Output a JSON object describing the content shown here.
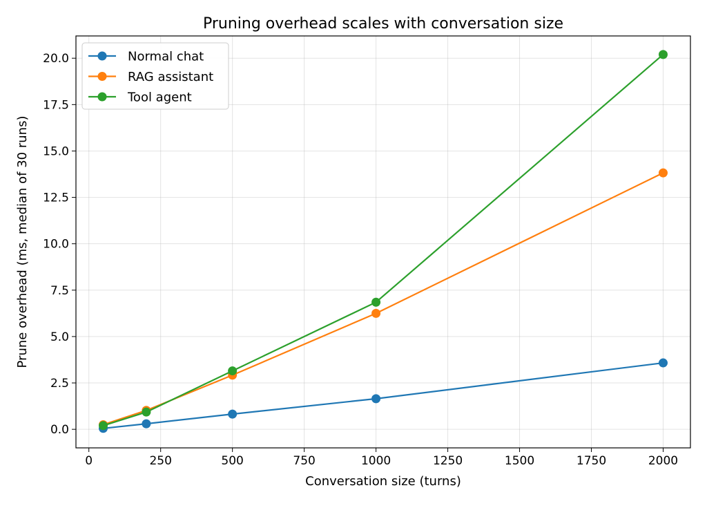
{
  "chart_data": {
    "type": "line",
    "title": "Pruning overhead scales with conversation size",
    "xlabel": "Conversation size (turns)",
    "ylabel": "Prune overhead (ms, median of 30 runs)",
    "x": [
      50,
      200,
      500,
      1000,
      2000
    ],
    "xlim": [
      -45,
      2095
    ],
    "ylim": [
      -1.0,
      21.2
    ],
    "xticks": [
      0,
      250,
      500,
      750,
      1000,
      1250,
      1500,
      1750,
      2000
    ],
    "yticks": [
      0.0,
      2.5,
      5.0,
      7.5,
      10.0,
      12.5,
      15.0,
      17.5,
      20.0
    ],
    "xtick_labels": [
      "0",
      "250",
      "500",
      "750",
      "1000",
      "1250",
      "1500",
      "1750",
      "2000"
    ],
    "ytick_labels": [
      "0.0",
      "2.5",
      "5.0",
      "7.5",
      "10.0",
      "12.5",
      "15.0",
      "17.5",
      "20.0"
    ],
    "grid": true,
    "legend_position": "top-left",
    "series": [
      {
        "name": "Normal chat",
        "color": "#1f77b4",
        "values": [
          0.05,
          0.3,
          0.82,
          1.65,
          3.58
        ]
      },
      {
        "name": "RAG assistant",
        "color": "#ff7f0e",
        "values": [
          0.25,
          1.02,
          2.92,
          6.25,
          13.82
        ]
      },
      {
        "name": "Tool agent",
        "color": "#2ca02c",
        "values": [
          0.2,
          0.93,
          3.15,
          6.85,
          20.2
        ]
      }
    ]
  }
}
